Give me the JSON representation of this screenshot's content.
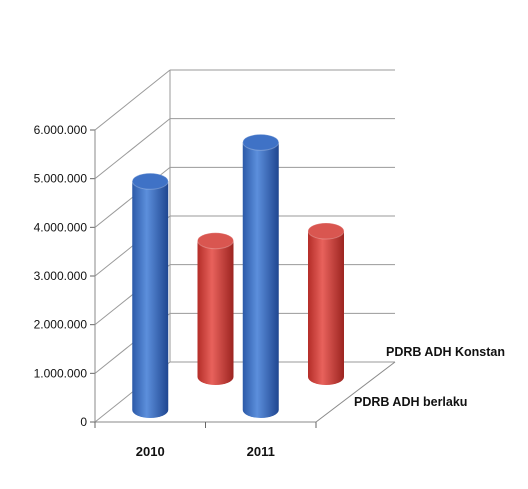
{
  "chart_data": {
    "type": "bar",
    "subtype": "3d-cylinder",
    "title": "",
    "xlabel": "",
    "ylabel": "",
    "categories": [
      "2010",
      "2011"
    ],
    "series": [
      {
        "name": "PDRB ADH berlaku",
        "color": "#d9403a",
        "values": [
          2800000,
          3000000
        ]
      },
      {
        "name": "PDRB ADH Konstan",
        "color": "#3a6fc4",
        "values": [
          4700000,
          5500000
        ]
      }
    ],
    "ylim": [
      0,
      6000000
    ],
    "y_tick_labels": [
      "0",
      "1.000.000",
      "2.000.000",
      "3.000.000",
      "4.000.000",
      "5.000.000",
      "6.000.000"
    ],
    "grid": true,
    "legend": "series labels along depth axis"
  }
}
